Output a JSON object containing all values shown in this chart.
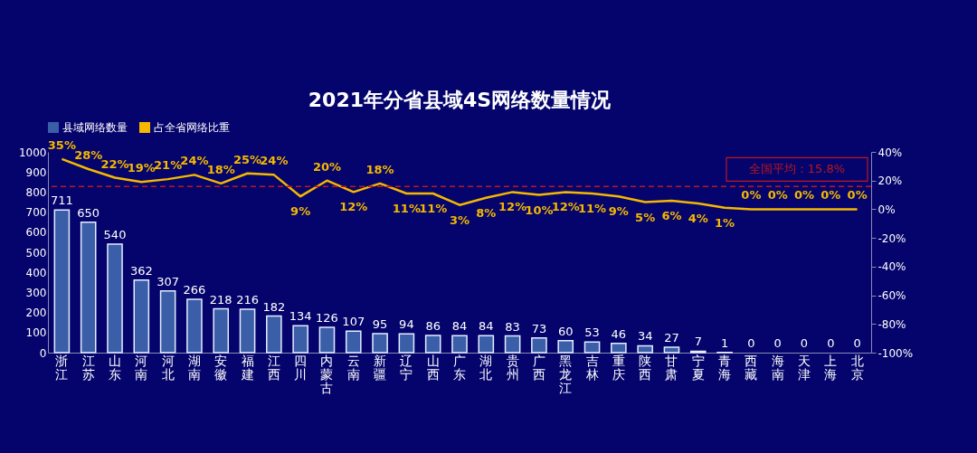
{
  "chart_data": {
    "type": "bar",
    "title": "2021年分省县域4S网络数量情况",
    "categories": [
      "浙江",
      "江苏",
      "山东",
      "河南",
      "河北",
      "湖南",
      "安徽",
      "福建",
      "江西",
      "四川",
      "内蒙古",
      "云南",
      "新疆",
      "辽宁",
      "山西",
      "广东",
      "湖北",
      "贵州",
      "广西",
      "黑龙江",
      "吉林",
      "重庆",
      "陕西",
      "甘肃",
      "宁夏",
      "青海",
      "西藏",
      "海南",
      "天津",
      "上海",
      "北京"
    ],
    "series": [
      {
        "name": "县域网络数量",
        "color": "#3a5ea8",
        "values": [
          711,
          650,
          540,
          362,
          307,
          266,
          218,
          216,
          182,
          134,
          126,
          107,
          95,
          94,
          86,
          84,
          84,
          83,
          73,
          60,
          53,
          46,
          34,
          27,
          7,
          1,
          0,
          0,
          0,
          0,
          0
        ],
        "value_labels": [
          "711",
          "650",
          "540",
          "362",
          "307",
          "266",
          "218",
          "216",
          "182",
          "134",
          "126",
          "107",
          "95",
          "94",
          "86",
          "84",
          "84",
          "83",
          "73",
          "60",
          "53",
          "46",
          "34",
          "27",
          "7",
          "1",
          "0",
          "0",
          "0",
          "0",
          "0"
        ]
      },
      {
        "name": "占全省网络比重",
        "type": "line",
        "axis": "y2",
        "color": "#f5b800",
        "values": [
          35,
          28,
          22,
          19,
          21,
          24,
          18,
          25,
          24,
          9,
          20,
          12,
          18,
          11,
          11,
          3,
          8,
          12,
          10,
          12,
          11,
          9,
          5,
          6,
          4,
          1,
          0,
          0,
          0,
          0,
          0
        ],
        "value_labels": [
          "35%",
          "28%",
          "22%",
          "19%",
          "21%",
          "24%",
          "18%",
          "25%",
          "24%",
          "9%",
          "20%",
          "12%",
          "18%",
          "11%",
          "11%",
          "3%",
          "8%",
          "12%",
          "10%",
          "12%",
          "11%",
          "9%",
          "5%",
          "6%",
          "4%",
          "1%",
          "0%",
          "0%",
          "0%",
          "0%",
          "0%"
        ]
      }
    ],
    "ylim": [
      0,
      1000
    ],
    "yticks": [
      0,
      100,
      200,
      300,
      400,
      500,
      600,
      700,
      800,
      900,
      1000
    ],
    "y2lim": [
      -100,
      40
    ],
    "y2ticks": [
      {
        "value": -100,
        "label": "-100%"
      },
      {
        "value": -80,
        "label": "-80%"
      },
      {
        "value": -60,
        "label": "-60%"
      },
      {
        "value": -40,
        "label": "-40%"
      },
      {
        "value": -20,
        "label": "-20%"
      },
      {
        "value": 0,
        "label": "0%"
      },
      {
        "value": 20,
        "label": "20%"
      },
      {
        "value": 40,
        "label": "40%"
      }
    ],
    "ref_lines": [
      {
        "axis": "y2",
        "value": 15.8,
        "label": "全国平均：15.8%",
        "color": "#c0171d",
        "line_style": "dashed"
      }
    ],
    "legend": "top",
    "grid": false
  }
}
